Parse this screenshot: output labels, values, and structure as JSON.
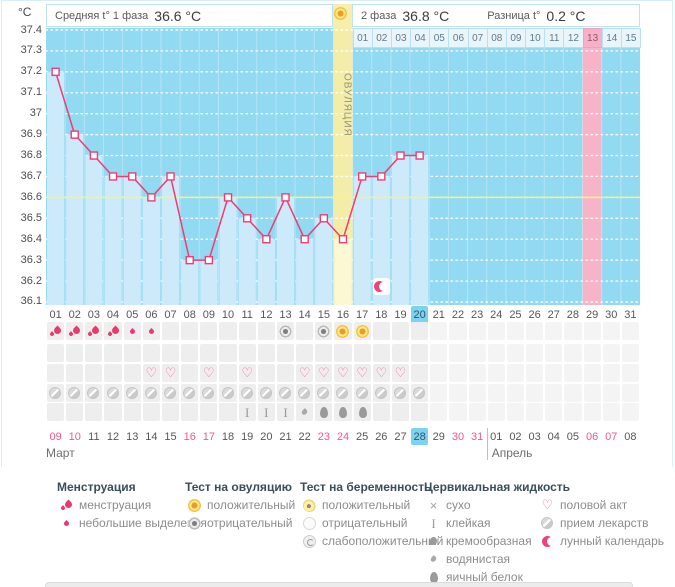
{
  "header": {
    "unit": "°C",
    "avg_label": "Средняя t° 1 фаза",
    "avg_value": "36.6 °C",
    "phase2_label": "2 фаза",
    "phase2_value": "36.8 °C",
    "diff_label": "Разница t°",
    "diff_value": "0.2 °C",
    "ovulation_label": "ОВУЛЯЦИЯ"
  },
  "chart_data": {
    "type": "line",
    "ylabel": "°C",
    "ylim": [
      36.1,
      37.4
    ],
    "yticks": [
      "37.4",
      "37.3",
      "37.2",
      "37.1",
      "37",
      "36.9",
      "36.8",
      "36.7",
      "36.6",
      "36.5",
      "36.4",
      "36.3",
      "36.2",
      "36.1"
    ],
    "x_cycle_days": [
      "01",
      "02",
      "03",
      "04",
      "05",
      "06",
      "07",
      "08",
      "09",
      "10",
      "11",
      "12",
      "13",
      "14",
      "15",
      "16",
      "17",
      "18",
      "19",
      "20",
      "21",
      "22",
      "23",
      "24",
      "25",
      "26",
      "27",
      "28",
      "29",
      "30",
      "31"
    ],
    "temps_by_cycle_day": [
      [
        1,
        37.2
      ],
      [
        2,
        36.9
      ],
      [
        3,
        36.8
      ],
      [
        4,
        36.7
      ],
      [
        5,
        36.7
      ],
      [
        6,
        36.6
      ],
      [
        7,
        36.7
      ],
      [
        8,
        36.3
      ],
      [
        9,
        36.3
      ],
      [
        10,
        36.6
      ],
      [
        11,
        36.5
      ],
      [
        12,
        36.4
      ],
      [
        13,
        36.6
      ],
      [
        14,
        36.4
      ],
      [
        15,
        36.5
      ],
      [
        16,
        36.4
      ],
      [
        17,
        36.7
      ],
      [
        18,
        36.7
      ],
      [
        19,
        36.8
      ],
      [
        20,
        36.8
      ]
    ],
    "coverline": 36.6,
    "ovulation_day": 16,
    "today_cycle_day": 20,
    "expected_period_cycle_day": 29,
    "phase2_day_labels": [
      "01",
      "02",
      "03",
      "04",
      "05",
      "06",
      "07",
      "08",
      "09",
      "10",
      "11",
      "12",
      "13",
      "14",
      "15"
    ],
    "phase2_highlighted_day": "13",
    "lunar_event_cycle_day": 18,
    "grid": true,
    "legend_position": "bottom",
    "colors": {
      "plot_bg": "#92d9f2",
      "fill_below_line": "#cdeafa",
      "ovulation_band": "#f4eda9",
      "ovulation_fill": "#fcf8d4",
      "period_column": "#f7b3c8",
      "coverline": "#f3f67e",
      "temp_line": "#ee3d74",
      "today_highlight": "#7ed2f1",
      "weekend_text": "#f2578a"
    }
  },
  "tracker_rows": [
    {
      "name": "menstruation-and-ovulation-tests",
      "cells": {
        "1": "flow-heavy",
        "2": "flow-heavy",
        "3": "flow-heavy",
        "4": "flow-heavy",
        "5": "flow-light",
        "6": "flow-light",
        "13": "test-negative",
        "15": "test-negative",
        "16": "test-positive",
        "17": "test-positive"
      }
    },
    {
      "name": "pregnancy-tests",
      "cells": {}
    },
    {
      "name": "intercourse",
      "cells": {
        "6": "heart",
        "7": "heart",
        "9": "heart",
        "11": "heart",
        "14": "heart",
        "15": "heart",
        "16": "heart",
        "17": "heart",
        "18": "heart",
        "19": "heart"
      }
    },
    {
      "name": "medication",
      "cells": {
        "1": "pill",
        "2": "pill",
        "3": "pill",
        "4": "pill",
        "5": "pill",
        "6": "pill",
        "7": "pill",
        "8": "pill",
        "9": "pill",
        "10": "pill",
        "11": "pill",
        "12": "pill",
        "13": "pill",
        "14": "pill",
        "15": "pill",
        "16": "pill",
        "17": "pill",
        "18": "pill",
        "19": "pill",
        "20": "pill"
      }
    },
    {
      "name": "cervical-fluid",
      "cells": {
        "11": "sticky",
        "12": "sticky",
        "13": "sticky",
        "14": "watery",
        "15": "eggwhite",
        "16": "eggwhite",
        "17": "eggwhite"
      }
    }
  ],
  "calendar": {
    "march_label": "Март",
    "april_label": "Апрель",
    "dates": [
      {
        "label": "09",
        "month": "march",
        "weekend": true
      },
      {
        "label": "10",
        "month": "march",
        "weekend": true
      },
      {
        "label": "11",
        "month": "march"
      },
      {
        "label": "12",
        "month": "march"
      },
      {
        "label": "13",
        "month": "march"
      },
      {
        "label": "14",
        "month": "march"
      },
      {
        "label": "15",
        "month": "march"
      },
      {
        "label": "16",
        "month": "march",
        "weekend": true
      },
      {
        "label": "17",
        "month": "march",
        "weekend": true
      },
      {
        "label": "18",
        "month": "march"
      },
      {
        "label": "19",
        "month": "march"
      },
      {
        "label": "20",
        "month": "march"
      },
      {
        "label": "21",
        "month": "march"
      },
      {
        "label": "22",
        "month": "march"
      },
      {
        "label": "23",
        "month": "march",
        "weekend": true
      },
      {
        "label": "24",
        "month": "march",
        "weekend": true
      },
      {
        "label": "25",
        "month": "march"
      },
      {
        "label": "26",
        "month": "march"
      },
      {
        "label": "27",
        "month": "march"
      },
      {
        "label": "28",
        "month": "march",
        "today": true
      },
      {
        "label": "29",
        "month": "march"
      },
      {
        "label": "30",
        "month": "march",
        "weekend": true
      },
      {
        "label": "31",
        "month": "march",
        "weekend": true
      },
      {
        "label": "01",
        "month": "april"
      },
      {
        "label": "02",
        "month": "april"
      },
      {
        "label": "03",
        "month": "april"
      },
      {
        "label": "04",
        "month": "april"
      },
      {
        "label": "05",
        "month": "april"
      },
      {
        "label": "06",
        "month": "april",
        "weekend": true
      },
      {
        "label": "07",
        "month": "april",
        "weekend": true
      },
      {
        "label": "08",
        "month": "april"
      }
    ]
  },
  "legend": {
    "columns": [
      {
        "title": "Менструация",
        "items": [
          {
            "icon": "flow-heavy",
            "label": "менструация"
          },
          {
            "icon": "flow-light",
            "label": "небольшие выделения"
          }
        ]
      },
      {
        "title": "Тест на овуляцию",
        "items": [
          {
            "icon": "test-positive",
            "label": "положительный"
          },
          {
            "icon": "test-negative",
            "label": "отрицательный"
          }
        ]
      },
      {
        "title": "Тест на беременность",
        "items": [
          {
            "icon": "preg-positive",
            "label": "положительный"
          },
          {
            "icon": "preg-negative",
            "label": "отрицательный"
          },
          {
            "icon": "preg-weak",
            "label": "слабоположительный"
          }
        ]
      },
      {
        "title": "Цервикальная жидкость",
        "items": [
          {
            "icon": "dry",
            "label": "сухо"
          },
          {
            "icon": "sticky",
            "label": "клейкая"
          },
          {
            "icon": "creamy",
            "label": "кремообразная"
          },
          {
            "icon": "watery",
            "label": "водянистая"
          },
          {
            "icon": "eggwhite",
            "label": "яичный белок"
          }
        ]
      },
      {
        "title": "",
        "items": [
          {
            "icon": "heart",
            "label": "половой акт"
          },
          {
            "icon": "pill",
            "label": "прием лекарств"
          },
          {
            "icon": "moon",
            "label": "лунный календарь"
          }
        ]
      }
    ]
  }
}
